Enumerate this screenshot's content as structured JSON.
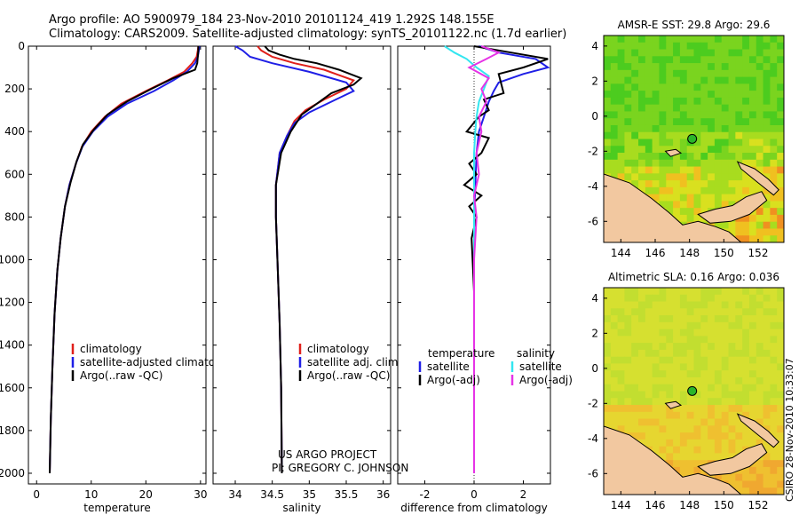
{
  "header": {
    "line1": "Argo profile: AO 5900979_184 23-Nov-2010 20101124_419 1.292S 148.155E",
    "line2": "Climatology: CARS2009. Satellite-adjusted climatology: synTS_20101122.nc (1.7d earlier)"
  },
  "credit": {
    "project": "US ARGO PROJECT",
    "pi": "PI: GREGORY C. JOHNSON",
    "footer": "CSIRO 28-Nov-2010 10:33:07"
  },
  "colors": {
    "climatology": "#e0201b",
    "satellite": "#1f1fe6",
    "argo": "#000000",
    "sat_diff": "#33e6f0",
    "argo_diff": "#e633e6",
    "land": "#f2c8a0"
  },
  "chart_data": [
    {
      "id": "temperature",
      "type": "line",
      "xlabel": "temperature",
      "ylabel": "",
      "xlim": [
        -1.5,
        31
      ],
      "ylim": [
        2050,
        0
      ],
      "xticks": [
        0,
        10,
        20,
        30
      ],
      "yticks": [
        0,
        200,
        400,
        600,
        800,
        1000,
        1200,
        1400,
        1600,
        1800,
        2000
      ],
      "legend": [
        "climatology",
        "satellite-adjusted climatology",
        "Argo(..raw -QC)"
      ],
      "series": [
        {
          "name": "climatology",
          "color_key": "climatology",
          "x": [
            29.6,
            29.5,
            29.3,
            28.5,
            27.0,
            24.0,
            20.0,
            15.5,
            12.5,
            10.0,
            8.3,
            7.2,
            6.0,
            5.2,
            4.4,
            3.8,
            3.3,
            2.9,
            2.6,
            2.4
          ],
          "y": [
            0,
            20,
            50,
            80,
            120,
            160,
            210,
            270,
            330,
            400,
            470,
            550,
            650,
            750,
            900,
            1050,
            1250,
            1500,
            1750,
            2000
          ]
        },
        {
          "name": "satellite-adjusted climatology",
          "color_key": "satellite",
          "x": [
            29.8,
            29.7,
            29.5,
            29.0,
            27.5,
            25.0,
            21.5,
            16.5,
            13.0,
            10.3,
            8.4,
            7.2,
            6.0,
            5.2,
            4.4,
            3.8,
            3.3,
            2.9,
            2.6,
            2.4
          ],
          "y": [
            0,
            20,
            50,
            80,
            120,
            160,
            210,
            270,
            330,
            400,
            470,
            550,
            650,
            750,
            900,
            1050,
            1250,
            1500,
            1750,
            2000
          ]
        },
        {
          "name": "Argo(..raw -QC)",
          "color_key": "argo",
          "x": [
            29.6,
            29.6,
            29.5,
            29.4,
            29.0,
            25.0,
            21.0,
            16.5,
            13.0,
            10.5,
            8.5,
            7.3,
            6.2,
            5.2,
            4.4,
            3.8,
            3.3,
            2.9,
            2.6,
            2.4
          ],
          "y": [
            0,
            20,
            50,
            80,
            110,
            150,
            200,
            260,
            320,
            390,
            460,
            540,
            640,
            750,
            900,
            1050,
            1250,
            1500,
            1750,
            2000
          ]
        }
      ]
    },
    {
      "id": "salinity",
      "type": "line",
      "xlabel": "salinity",
      "ylabel": "",
      "xlim": [
        33.7,
        36.1
      ],
      "ylim": [
        2050,
        0
      ],
      "xticks": [
        34,
        34.5,
        35,
        35.5,
        36
      ],
      "yticks": [
        0,
        200,
        400,
        600,
        800,
        1000,
        1200,
        1400,
        1600,
        1800,
        2000
      ],
      "legend": [
        "climatology",
        "satellite adj. clim.",
        "Argo(..raw -QC)"
      ],
      "series": [
        {
          "name": "climatology",
          "color_key": "climatology",
          "x": [
            34.3,
            34.35,
            34.5,
            34.8,
            35.2,
            35.6,
            35.5,
            35.2,
            34.95,
            34.8,
            34.7,
            34.6,
            34.55,
            34.55,
            34.57,
            34.6,
            34.62,
            34.63
          ],
          "y": [
            0,
            20,
            50,
            80,
            110,
            160,
            200,
            250,
            300,
            350,
            420,
            500,
            650,
            800,
            1000,
            1300,
            1600,
            2000
          ]
        },
        {
          "name": "satellite adj. clim.",
          "color_key": "satellite",
          "x": [
            34.0,
            34.1,
            34.2,
            34.5,
            35.0,
            35.5,
            35.6,
            35.3,
            35.0,
            34.8,
            34.7,
            34.6,
            34.55,
            34.55,
            34.57,
            34.6,
            34.62,
            34.63
          ],
          "y": [
            0,
            20,
            50,
            80,
            120,
            170,
            210,
            260,
            310,
            360,
            420,
            500,
            650,
            800,
            1000,
            1300,
            1600,
            2000
          ]
        },
        {
          "name": "Argo(..raw -QC)",
          "color_key": "argo",
          "x": [
            34.4,
            34.45,
            34.6,
            34.8,
            35.1,
            35.4,
            35.7,
            35.6,
            35.3,
            35.1,
            34.9,
            34.75,
            34.62,
            34.55,
            34.55,
            34.57,
            34.6,
            34.62,
            34.63
          ],
          "y": [
            0,
            20,
            40,
            60,
            80,
            110,
            150,
            180,
            220,
            270,
            320,
            400,
            500,
            650,
            800,
            1000,
            1300,
            1600,
            2000
          ]
        }
      ]
    },
    {
      "id": "difference",
      "type": "line",
      "xlabel": "difference from climatology",
      "ylabel": "",
      "xlim": [
        -3.1,
        3.1
      ],
      "ylim": [
        2050,
        0
      ],
      "xticks": [
        -2,
        0,
        2
      ],
      "yticks": [
        0,
        200,
        400,
        600,
        800,
        1000,
        1200,
        1400,
        1600,
        1800,
        2000
      ],
      "legend_columns": [
        {
          "heading": "temperature",
          "entries": [
            "satellite",
            "Argo(-adj)"
          ]
        },
        {
          "heading": "salinity",
          "entries": [
            "satellite",
            "Argo(-adj)"
          ]
        }
      ],
      "series": [
        {
          "name": "temperature satellite",
          "color_key": "satellite",
          "x": [
            0.2,
            1.0,
            2.5,
            3.0,
            2.0,
            1.0,
            0.8,
            0.6,
            0.4,
            0.2,
            0.1,
            0.05,
            0.0,
            0.0,
            0.0,
            0.0
          ],
          "y": [
            0,
            30,
            60,
            100,
            130,
            170,
            210,
            260,
            330,
            400,
            500,
            650,
            800,
            1100,
            1500,
            2000
          ]
        },
        {
          "name": "temperature Argo(-adj)",
          "color_key": "argo",
          "x": [
            0.0,
            1.5,
            3.0,
            2.0,
            1.0,
            1.2,
            0.4,
            0.6,
            0.2,
            -0.3,
            0.6,
            0.3,
            -0.2,
            0.1,
            -0.4,
            0.3,
            -0.2,
            0.1,
            -0.1,
            0.0,
            0.0
          ],
          "y": [
            0,
            30,
            60,
            100,
            130,
            220,
            250,
            300,
            330,
            400,
            430,
            500,
            550,
            600,
            650,
            700,
            750,
            800,
            900,
            1150,
            2000
          ]
        },
        {
          "name": "salinity satellite",
          "color_key": "sat_diff",
          "x": [
            -1.2,
            -0.8,
            -0.3,
            0.1,
            0.6,
            0.4,
            0.2,
            0.1,
            0.05,
            0.0,
            0.0,
            0.0
          ],
          "y": [
            0,
            30,
            60,
            100,
            140,
            200,
            260,
            330,
            400,
            500,
            800,
            2000
          ]
        },
        {
          "name": "salinity Argo(-adj)",
          "color_key": "argo_diff",
          "x": [
            0.3,
            1.0,
            0.5,
            -0.2,
            0.6,
            0.3,
            0.5,
            0.2,
            0.3,
            0.1,
            0.2,
            0.0,
            0.1,
            0.0,
            0.0
          ],
          "y": [
            0,
            30,
            60,
            100,
            150,
            200,
            260,
            330,
            400,
            500,
            600,
            700,
            800,
            1000,
            2000
          ]
        }
      ]
    },
    {
      "id": "sst_map",
      "type": "heatmap",
      "title": "AMSR-E SST: 29.8 Argo: 29.6",
      "xlim": [
        143,
        153.5
      ],
      "ylim": [
        -7.2,
        4.6
      ],
      "xticks": [
        144,
        146,
        148,
        150,
        152
      ],
      "yticks": [
        -6,
        -4,
        -2,
        0,
        2,
        4
      ],
      "argo_position": {
        "lon": 148.155,
        "lat": -1.292
      },
      "palette": [
        "#1fbf1f",
        "#4ccc1f",
        "#7ad41f",
        "#a8dc1f",
        "#d9e01f",
        "#f0c020",
        "#f09020"
      ]
    },
    {
      "id": "sla_map",
      "type": "heatmap",
      "title": "Altimetric SLA: 0.16 Argo: 0.036",
      "xlim": [
        143,
        153.5
      ],
      "ylim": [
        -7.2,
        4.6
      ],
      "xticks": [
        144,
        146,
        148,
        150,
        152
      ],
      "yticks": [
        -6,
        -4,
        -2,
        0,
        2,
        4
      ],
      "argo_position": {
        "lon": 148.155,
        "lat": -1.292
      },
      "palette": [
        "#a6d82a",
        "#c2de30",
        "#d6e030",
        "#e6d630",
        "#efc030",
        "#f0a830"
      ]
    }
  ]
}
